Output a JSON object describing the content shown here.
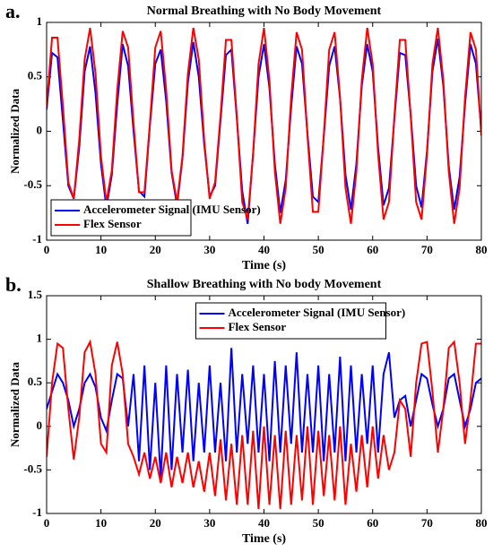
{
  "chart_data": [
    {
      "type": "line",
      "panel_label": "a.",
      "title": "Normal Breathing with No Body Movement",
      "xlabel": "Time (s)",
      "ylabel": "Normalized Data",
      "xlim": [
        0,
        80
      ],
      "ylim": [
        -1,
        1
      ],
      "xticks": [
        0,
        10,
        20,
        30,
        40,
        50,
        60,
        70,
        80
      ],
      "yticks": [
        -1,
        -0.5,
        0,
        0.5,
        1
      ],
      "legend": "lower left",
      "grid": false,
      "x": [
        0,
        1,
        2,
        3,
        4,
        5,
        6,
        7,
        8,
        9,
        10,
        11,
        12,
        13,
        14,
        15,
        16,
        17,
        18,
        19,
        20,
        21,
        22,
        23,
        24,
        25,
        26,
        27,
        28,
        29,
        30,
        31,
        32,
        33,
        34,
        35,
        36,
        37,
        38,
        39,
        40,
        41,
        42,
        43,
        44,
        45,
        46,
        47,
        48,
        49,
        50,
        51,
        52,
        53,
        54,
        55,
        56,
        57,
        58,
        59,
        60,
        61,
        62,
        63,
        64,
        65,
        66,
        67,
        68,
        69,
        70,
        71,
        72,
        73,
        74,
        75,
        76,
        77,
        78,
        79,
        80
      ],
      "series": [
        {
          "name": "Accelerometer Signal (IMU Sensor)",
          "color": "#0000ff",
          "values": [
            0.2,
            0.72,
            0.68,
            0.1,
            -0.5,
            -0.62,
            -0.15,
            0.55,
            0.78,
            0.35,
            -0.3,
            -0.7,
            -0.4,
            0.25,
            0.8,
            0.6,
            0.0,
            -0.55,
            -0.6,
            0.05,
            0.62,
            0.75,
            0.28,
            -0.38,
            -0.68,
            -0.25,
            0.45,
            0.82,
            0.5,
            -0.12,
            -0.6,
            -0.5,
            0.1,
            0.7,
            0.75,
            0.12,
            -0.55,
            -0.85,
            -0.2,
            0.5,
            0.8,
            0.4,
            -0.3,
            -0.75,
            -0.45,
            0.22,
            0.78,
            0.62,
            -0.02,
            -0.6,
            -0.65,
            -0.05,
            0.6,
            0.78,
            0.3,
            -0.4,
            -0.72,
            -0.3,
            0.42,
            0.8,
            0.55,
            -0.15,
            -0.68,
            -0.52,
            0.12,
            0.72,
            0.7,
            0.15,
            -0.5,
            -0.7,
            -0.18,
            0.55,
            0.85,
            0.42,
            -0.32,
            -0.72,
            -0.42,
            0.25,
            0.8,
            0.62,
            0.0
          ]
        },
        {
          "name": "Flex Sensor",
          "color": "#ff0000",
          "values": [
            0.23,
            0.86,
            0.86,
            0.23,
            -0.47,
            -0.62,
            -0.08,
            0.66,
            0.95,
            0.53,
            -0.23,
            -0.65,
            -0.36,
            0.38,
            0.92,
            0.77,
            0.07,
            -0.56,
            -0.56,
            0.07,
            0.77,
            0.92,
            0.38,
            -0.36,
            -0.65,
            -0.23,
            0.53,
            0.95,
            0.66,
            -0.08,
            -0.62,
            -0.47,
            0.14,
            0.84,
            0.84,
            0.14,
            -0.65,
            -0.81,
            -0.21,
            0.62,
            0.95,
            0.47,
            -0.37,
            -0.85,
            -0.52,
            0.31,
            0.91,
            0.75,
            -0.04,
            -0.74,
            -0.74,
            -0.04,
            0.75,
            0.91,
            0.31,
            -0.52,
            -0.85,
            -0.37,
            0.47,
            0.95,
            0.62,
            -0.21,
            -0.81,
            -0.65,
            0.14,
            0.84,
            0.84,
            0.14,
            -0.65,
            -0.81,
            -0.21,
            0.62,
            0.95,
            0.47,
            -0.37,
            -0.85,
            -0.52,
            0.31,
            0.91,
            0.75,
            -0.04
          ]
        }
      ]
    },
    {
      "type": "line",
      "panel_label": "b.",
      "title": "Shallow Breathing with No body Movement",
      "xlabel": "Time (s)",
      "ylabel": "Normalized Data",
      "xlim": [
        0,
        80
      ],
      "ylim": [
        -1,
        1.5
      ],
      "xticks": [
        0,
        10,
        20,
        30,
        40,
        50,
        60,
        70,
        80
      ],
      "yticks": [
        -1,
        -0.5,
        0,
        0.5,
        1,
        1.5
      ],
      "legend": "upper center",
      "grid": false,
      "x": [
        0,
        1,
        2,
        3,
        4,
        5,
        6,
        7,
        8,
        9,
        10,
        11,
        12,
        13,
        14,
        15,
        16,
        17,
        18,
        19,
        20,
        21,
        22,
        23,
        24,
        25,
        26,
        27,
        28,
        29,
        30,
        31,
        32,
        33,
        34,
        35,
        36,
        37,
        38,
        39,
        40,
        41,
        42,
        43,
        44,
        45,
        46,
        47,
        48,
        49,
        50,
        51,
        52,
        53,
        54,
        55,
        56,
        57,
        58,
        59,
        60,
        61,
        62,
        63,
        64,
        65,
        66,
        67,
        68,
        69,
        70,
        71,
        72,
        73,
        74,
        75,
        76,
        77,
        78,
        79,
        80
      ],
      "series": [
        {
          "name": "Accelerometer Signal (IMU Sensor)",
          "color": "#0000ff",
          "values": [
            0.2,
            0.4,
            0.6,
            0.5,
            0.3,
            0.0,
            0.2,
            0.5,
            0.6,
            0.45,
            0.1,
            -0.05,
            0.3,
            0.6,
            0.55,
            0.0,
            0.6,
            -0.4,
            0.7,
            -0.5,
            0.5,
            -0.6,
            0.7,
            -0.5,
            0.6,
            -0.3,
            0.65,
            -0.4,
            0.5,
            -0.3,
            0.7,
            -0.3,
            0.5,
            -0.4,
            0.9,
            -0.3,
            0.6,
            -0.2,
            0.7,
            -0.3,
            0.6,
            -0.4,
            0.75,
            -0.3,
            0.7,
            -0.2,
            0.85,
            -0.3,
            0.6,
            -0.3,
            0.7,
            -0.4,
            0.6,
            -0.3,
            0.8,
            -0.4,
            0.7,
            -0.3,
            0.6,
            -0.2,
            0.7,
            -0.3,
            0.6,
            0.85,
            0.1,
            0.3,
            0.35,
            0.0,
            0.3,
            0.6,
            0.55,
            0.25,
            0.0,
            0.2,
            0.55,
            0.6,
            0.3,
            0.0,
            0.2,
            0.5,
            0.55
          ]
        },
        {
          "name": "Flex Sensor",
          "color": "#ff0000",
          "values": [
            -0.35,
            0.5,
            0.95,
            0.9,
            0.2,
            -0.38,
            0.1,
            0.85,
            0.97,
            0.6,
            -0.2,
            -0.3,
            0.7,
            0.97,
            0.6,
            -0.2,
            -0.35,
            -0.55,
            -0.3,
            -0.6,
            -0.35,
            -0.65,
            -0.3,
            -0.7,
            -0.35,
            -0.65,
            -0.3,
            -0.7,
            -0.4,
            -0.75,
            -0.3,
            -0.8,
            -0.15,
            -0.85,
            -0.2,
            -0.9,
            -0.1,
            -0.9,
            -0.05,
            -0.95,
            0.0,
            -0.9,
            -0.1,
            -0.95,
            -0.05,
            -0.9,
            -0.1,
            -0.85,
            0.0,
            -0.9,
            -0.05,
            -0.8,
            -0.1,
            -0.85,
            0.0,
            -0.9,
            -0.2,
            -0.75,
            -0.1,
            -0.7,
            0.0,
            -0.6,
            -0.1,
            -0.5,
            -0.3,
            0.3,
            0.2,
            -0.35,
            0.5,
            0.95,
            0.97,
            0.4,
            -0.3,
            0.2,
            0.9,
            0.97,
            0.5,
            -0.2,
            0.3,
            0.95,
            0.95
          ]
        }
      ]
    }
  ]
}
